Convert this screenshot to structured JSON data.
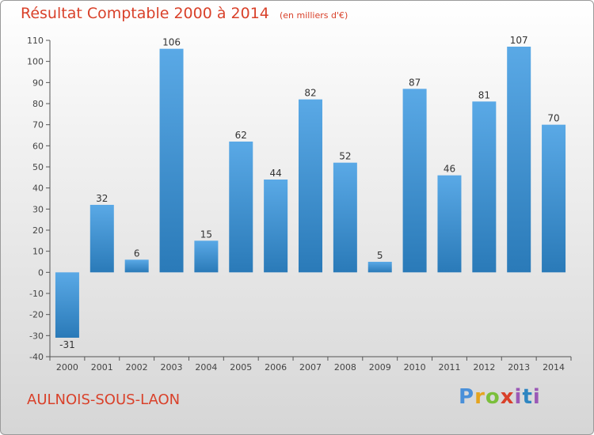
{
  "header": {
    "title": "Résultat Comptable 2000 à 2014",
    "units": "(en milliers d'€)"
  },
  "footer": {
    "commune": "AULNOIS-SOUS-LAON",
    "logo": "Proxiti"
  },
  "colors": {
    "title": "#d9412a",
    "bar_top": "#5aa9e6",
    "bar_bottom": "#2a7ab8",
    "axis": "#555555"
  },
  "chart_data": {
    "type": "bar",
    "title": "Résultat Comptable 2000 à 2014",
    "subtitle": "(en milliers d'€)",
    "xlabel": "",
    "ylabel": "",
    "categories": [
      "2000",
      "2001",
      "2002",
      "2003",
      "2004",
      "2005",
      "2006",
      "2007",
      "2008",
      "2009",
      "2010",
      "2011",
      "2012",
      "2013",
      "2014"
    ],
    "values": [
      -31,
      32,
      6,
      106,
      15,
      62,
      44,
      82,
      52,
      5,
      87,
      46,
      81,
      107,
      70
    ],
    "ylim": [
      -40,
      110
    ],
    "yticks": [
      -40,
      -30,
      -20,
      -10,
      0,
      10,
      20,
      30,
      40,
      50,
      60,
      70,
      80,
      90,
      100,
      110
    ],
    "grid": false,
    "data_labels": true
  }
}
